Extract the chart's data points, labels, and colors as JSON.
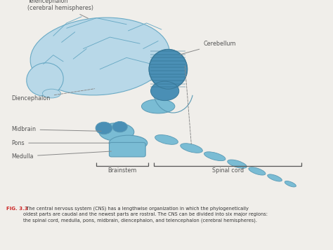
{
  "bg_color": "#f0eeea",
  "white_area": "#ffffff",
  "brain_fill": "#b8d8e8",
  "brain_edge": "#6aaac5",
  "cerebellum_fill": "#4a8fb5",
  "cerebellum_stripe": "#2a6a8a",
  "brainstem_fill": "#7abcd4",
  "brainstem_edge": "#5a9ab5",
  "label_color": "#555555",
  "line_color": "#888888",
  "fig_label_color": "#cc2222",
  "caption_color": "#333333",
  "labels": {
    "telencephalon": "Telencephalon\n(cerebral hemispheres)",
    "cerebellum": "Cerebellum",
    "diencephalon": "Diencephalon",
    "midbrain": "Midbrain",
    "pons": "Pons",
    "medulla": "Medulla",
    "brainstem": "Brainstem",
    "spinal_cord": "Spinal cord"
  },
  "caption_bold": "FIG. 3.3",
  "caption_text": "  The central nervous system (CNS) has a lengthwise organization in which the phylogenetically\noldest parts are caudal and the newest parts are rostral. The CNS can be divided into six major regions:\nthe spinal cord, medulla, pons, midbrain, diencephalon, and telencephalon (cerebral hemispheres)."
}
